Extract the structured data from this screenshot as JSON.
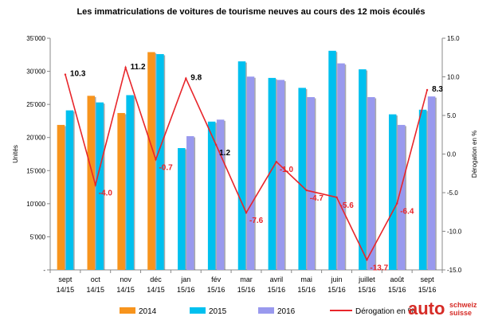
{
  "chart_data": {
    "type": "bar",
    "title": "Les immatriculations de voitures de tourisme neuves au cours des 12 mois écoulés",
    "ylabel": "Unités",
    "y2label": "Dérogation en %",
    "ylim": [
      0,
      35000
    ],
    "y2lim": [
      -15,
      15
    ],
    "yticks": [
      "-",
      "5'000",
      "10'000",
      "15'000",
      "20'000",
      "25'000",
      "30'000",
      "35'000"
    ],
    "y2ticks": [
      "-15.0",
      "-10.0",
      "-5.0",
      "0.0",
      "5.0",
      "10.0",
      "15.0"
    ],
    "categories": [
      [
        "sept",
        "14/15"
      ],
      [
        "oct",
        "14/15"
      ],
      [
        "nov",
        "14/15"
      ],
      [
        "déc",
        "14/15"
      ],
      [
        "jan",
        "15/16"
      ],
      [
        "fév",
        "15/16"
      ],
      [
        "mar",
        "15/16"
      ],
      [
        "avril",
        "15/16"
      ],
      [
        "mai",
        "15/16"
      ],
      [
        "juin",
        "15/16"
      ],
      [
        "juillet",
        "15/16"
      ],
      [
        "août",
        "15/16"
      ],
      [
        "sept",
        "15/16"
      ]
    ],
    "series": [
      {
        "name": "2014",
        "color": "#f7941d",
        "values": [
          21900,
          26300,
          23700,
          32900,
          null,
          null,
          null,
          null,
          null,
          null,
          null,
          null,
          null
        ]
      },
      {
        "name": "2015",
        "color": "#00c0ef",
        "values": [
          24100,
          25300,
          26400,
          32600,
          18400,
          22400,
          31500,
          29000,
          27500,
          33100,
          30300,
          23500,
          24200
        ]
      },
      {
        "name": "2016",
        "color": "#9999ee",
        "values": [
          null,
          null,
          null,
          null,
          20200,
          22700,
          29200,
          28700,
          26100,
          31200,
          26100,
          21900,
          26200
        ]
      }
    ],
    "line": {
      "name": "Dérogation en %",
      "color": "#e8262b",
      "values": [
        10.3,
        -4.0,
        11.2,
        -0.7,
        9.8,
        1.2,
        -7.6,
        -1.0,
        -4.7,
        -5.6,
        -13.7,
        -6.4,
        8.3
      ],
      "labels": [
        "10.3",
        "-4.0",
        "11.2",
        "-0.7",
        "9.8",
        "1.2",
        "-7.6",
        "-1.0",
        "-4.7",
        "-5.6",
        "-13.7",
        "-6.4",
        "8.3"
      ],
      "label_colors": [
        "#000000",
        "#e8262b",
        "#000000",
        "#e8262b",
        "#000000",
        "#000000",
        "#e8262b",
        "#e8262b",
        "#e8262b",
        "#e8262b",
        "#e8262b",
        "#e8262b",
        "#000000"
      ]
    },
    "legend": [
      "2014",
      "2015",
      "2016",
      "Dérogation en %"
    ],
    "legend_position": "bottom",
    "grid": false
  },
  "logo": {
    "main": "auto",
    "line1": "schweiz",
    "line2": "suisse"
  }
}
